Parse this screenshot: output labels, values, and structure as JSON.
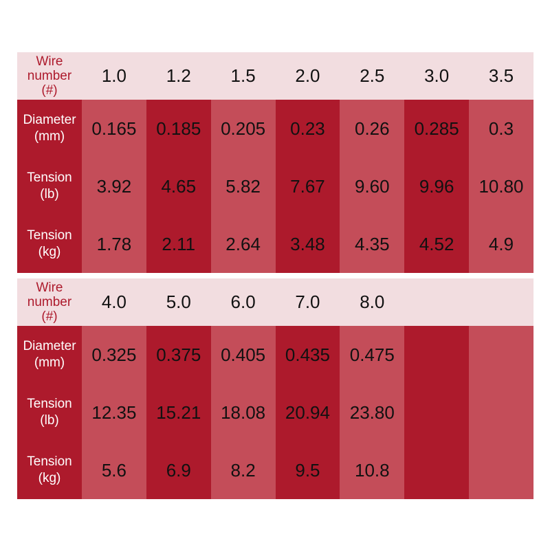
{
  "colors": {
    "header_bg": "#f2dde0",
    "label_text": "#ad1a2c",
    "dark_column": "#ad1a2c",
    "light_column": "#c44d59",
    "value_text": "#111111"
  },
  "labels": {
    "wire": [
      "Wire",
      "number",
      "(#)"
    ],
    "diameter": [
      "Diameter",
      "(mm)"
    ],
    "tension_lb": [
      "Tension",
      "(lb)"
    ],
    "tension_kg": [
      "Tension",
      "(kg)"
    ]
  },
  "table1": {
    "wire": [
      "1.0",
      "1.2",
      "1.5",
      "2.0",
      "2.5",
      "3.0",
      "3.5"
    ],
    "diameter": [
      "0.165",
      "0.185",
      "0.205",
      "0.23",
      "0.26",
      "0.285",
      "0.3"
    ],
    "tension_lb": [
      "3.92",
      "4.65",
      "5.82",
      "7.67",
      "9.60",
      "9.96",
      "10.80"
    ],
    "tension_kg": [
      "1.78",
      "2.11",
      "2.64",
      "3.48",
      "4.35",
      "4.52",
      "4.9"
    ]
  },
  "table2": {
    "wire": [
      "4.0",
      "5.0",
      "6.0",
      "7.0",
      "8.0",
      "",
      ""
    ],
    "diameter": [
      "0.325",
      "0.375",
      "0.405",
      "0.435",
      "0.475",
      "",
      ""
    ],
    "tension_lb": [
      "12.35",
      "15.21",
      "18.08",
      "20.94",
      "23.80",
      "",
      ""
    ],
    "tension_kg": [
      "5.6",
      "6.9",
      "8.2",
      "9.5",
      "10.8",
      "",
      ""
    ]
  }
}
